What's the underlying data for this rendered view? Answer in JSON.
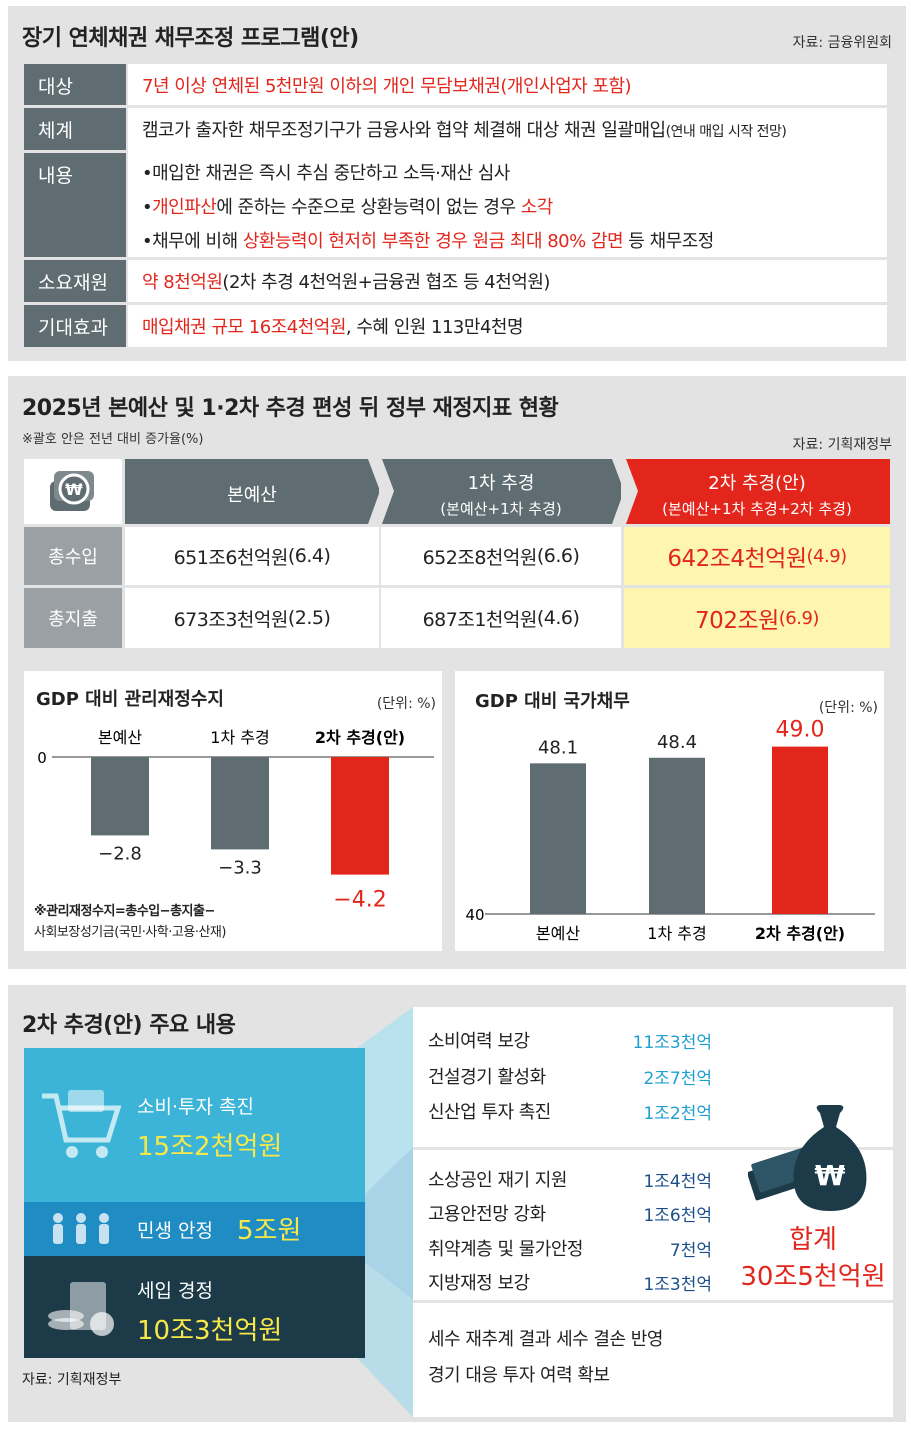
{
  "colors": {
    "red": "#e2261c",
    "slate": "#5f6d72",
    "cyan": "#3cb4d8",
    "blue": "#1f8dc4",
    "navy": "#1c3a48",
    "yellow": "#f7e84a"
  },
  "panel1": {
    "title": "장기 연체채권 채무조정 프로그램(안)",
    "source": "자료: 금융위원회",
    "rows": [
      {
        "label": "대상",
        "value": "7년 이상 연체된 5천만원 이하의 개인 무담보채권(개인사업자 포함)"
      },
      {
        "label": "체계",
        "value": "캠코가 출자한 채무조정기구가 금융사와 협약 체결해 대상 채권 일괄매입",
        "note": "(연내 매입 시작 전망)"
      },
      {
        "label": "내용",
        "b1": "•매입한 채권은 즉시 추심 중단하고 소득·재산 심사",
        "b2a": "•",
        "b2red": "개인파산",
        "b2b": "에 준하는 수준으로 상환능력이 없는 경우 ",
        "b2red2": "소각",
        "b3a": "•채무에 비해 ",
        "b3red": "상환능력이 현저히 부족한 경우 원금 최대 80% 감면",
        "b3b": " 등 채무조정"
      },
      {
        "label": "소요재원",
        "valred": "약 8천억원",
        "valb": "(2차 추경 4천억원+금융권 협조 등 4천억원)"
      },
      {
        "label": "기대효과",
        "valred": "매입채권 규모 16조4천억원",
        "valb": ", 수혜 인원 113만4천명"
      }
    ]
  },
  "panel2": {
    "title": "2025년 본예산 및 1·2차 추경 편성 뒤 정부 재정지표 현황",
    "note": "※괄호 안은 전년 대비 증가율(%)",
    "source": "자료: 기획재정부",
    "headers": [
      {
        "l1": "본예산",
        "l2": ""
      },
      {
        "l1": "1차 추경",
        "l2": "(본예산+1차 추경)"
      },
      {
        "l1": "2차 추경(안)",
        "l2": "(본예산+1차 추경+2차 추경)"
      }
    ],
    "rows": [
      {
        "label": "총수입",
        "v": [
          "651조6천억원",
          "652조8천억원",
          "642조4천억원"
        ],
        "p": [
          "(6.4)",
          "(6.6)",
          "(4.9)"
        ]
      },
      {
        "label": "총지출",
        "v": [
          "673조3천억원",
          "687조1천억원",
          "702조원"
        ],
        "p": [
          "(2.5)",
          "(4.6)",
          "(6.9)"
        ]
      }
    ]
  },
  "chart_data": [
    {
      "type": "bar",
      "title": "GDP 대비 관리재정수지",
      "unit": "(단위: %)",
      "categories": [
        "본예산",
        "1차 추경",
        "2차 추경(안)"
      ],
      "values": [
        -2.8,
        -3.3,
        -4.2
      ],
      "labels": [
        "−2.8",
        "−3.3",
        "−4.2"
      ],
      "ylim": [
        -5,
        0
      ],
      "baseline_label": "0",
      "note1": "※관리재정수지=총수입−총지출−",
      "note2": "사회보장성기금(국민·사학·고용·산재)"
    },
    {
      "type": "bar",
      "title": "GDP 대비 국가채무",
      "unit": "(단위: %)",
      "categories": [
        "본예산",
        "1차 추경",
        "2차 추경(안)"
      ],
      "values": [
        48.1,
        48.4,
        49.0
      ],
      "labels": [
        "48.1",
        "48.4",
        "49.0"
      ],
      "ylim": [
        40,
        50
      ],
      "baseline_label": "40"
    }
  ],
  "panel3": {
    "title": "2차 추경(안) 주요 내용",
    "source": "자료: 기획재정부",
    "blocks": [
      {
        "name": "소비·투자 촉진",
        "amount": "15조2천억원"
      },
      {
        "name": "민생 안정",
        "amount": "5조원"
      },
      {
        "name": "세입 경정",
        "amount": "10조3천억원"
      }
    ],
    "group1": [
      {
        "name": "소비여력 보강",
        "amt": "11조3천억"
      },
      {
        "name": "건설경기 활성화",
        "amt": "2조7천억"
      },
      {
        "name": "신산업 투자 촉진",
        "amt": "1조2천억"
      }
    ],
    "group2": [
      {
        "name": "소상공인 재기 지원",
        "amt": "1조4천억"
      },
      {
        "name": "고용안전망 강화",
        "amt": "1조6천억"
      },
      {
        "name": "취약계층 및 물가안정",
        "amt": "7천억"
      },
      {
        "name": "지방재정 보강",
        "amt": "1조3천억"
      }
    ],
    "group3": [
      "세수 재추계 결과 세수 결손 반영",
      "경기 대응 투자 여력 확보"
    ],
    "total_label": "합계",
    "total": "30조5천억원"
  }
}
